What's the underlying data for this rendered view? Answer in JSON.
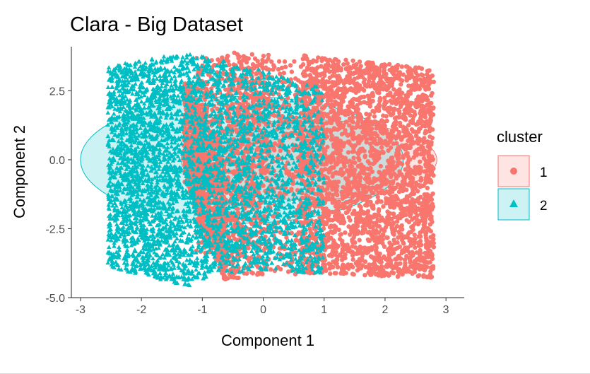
{
  "chart_data": {
    "type": "scatter",
    "title": "Clara - Big Dataset",
    "xlabel": "Component 1",
    "ylabel": "Component 2",
    "xlim": [
      -3.15,
      3.3
    ],
    "ylim": [
      -5.0,
      4.1
    ],
    "xticks": [
      -3,
      -2,
      -1,
      0,
      1,
      2,
      3
    ],
    "yticks": [
      -5.0,
      -2.5,
      0.0,
      2.5
    ],
    "xtick_labels": [
      "-3",
      "-2",
      "-1",
      "0",
      "1",
      "2",
      "3"
    ],
    "ytick_labels": [
      "-5.0",
      "-2.5",
      "0.0",
      "2.5"
    ],
    "grid": false,
    "legend": {
      "title": "cluster",
      "position": "right"
    },
    "series": [
      {
        "name": "1",
        "marker": "circle",
        "color": "#F8766D",
        "ellipse": {
          "cx": 0.75,
          "cy": 0.0,
          "rx": 2.1,
          "ry": 1.45
        },
        "bands": [
          {
            "x": [
              0.6,
              2.8
            ],
            "y_bottom": [
              -4.1,
              -4.3
            ],
            "y_top": [
              3.8,
              3.3
            ],
            "density": 0.9
          },
          {
            "x": [
              -1.3,
              -0.6
            ],
            "y_bottom": [
              -0.8,
              -4.6
            ],
            "y_top": [
              2.8,
              0.3
            ],
            "density": 0.9
          },
          {
            "x": [
              -1.3,
              -0.9
            ],
            "y_bottom": [
              -0.5,
              -1.5
            ],
            "y_top": [
              2.9,
              2.4
            ],
            "density": 0.35
          },
          {
            "x": [
              -0.6,
              0.1
            ],
            "y_bottom": [
              -4.4,
              -4.1
            ],
            "y_top": [
              3.9,
              3.8
            ],
            "density": 0.45
          },
          {
            "x": [
              -1.1,
              0.6
            ],
            "y_bottom": [
              -3.5,
              -4.2
            ],
            "y_top": [
              3.8,
              3.6
            ],
            "density": 0.35
          }
        ]
      },
      {
        "name": "2",
        "marker": "triangle",
        "color": "#00BFC4",
        "ellipse": {
          "cx": -0.35,
          "cy": 0.0,
          "rx": 2.65,
          "ry": 2.3
        },
        "bands": [
          {
            "x": [
              -2.55,
              -1.2
            ],
            "y_bottom": [
              -3.9,
              -4.6
            ],
            "y_top": [
              3.4,
              3.9
            ],
            "density": 0.9
          },
          {
            "x": [
              -1.2,
              -0.6
            ],
            "y_bottom": [
              -4.5,
              -4.0
            ],
            "y_top": [
              3.8,
              3.6
            ],
            "density": 0.8
          },
          {
            "x": [
              -0.6,
              0.1
            ],
            "y_bottom": [
              -4.1,
              -4.0
            ],
            "y_top": [
              3.5,
              3.2
            ],
            "density": 0.6
          },
          {
            "x": [
              0.1,
              1.0
            ],
            "y_bottom": [
              -4.0,
              -4.2
            ],
            "y_top": [
              3.2,
              2.6
            ],
            "density": 0.5
          },
          {
            "x": [
              -2.5,
              -1.5
            ],
            "y_bottom": [
              -3.6,
              -4.5
            ],
            "y_top": [
              3.3,
              3.7
            ],
            "density": 0.3
          }
        ]
      }
    ]
  }
}
